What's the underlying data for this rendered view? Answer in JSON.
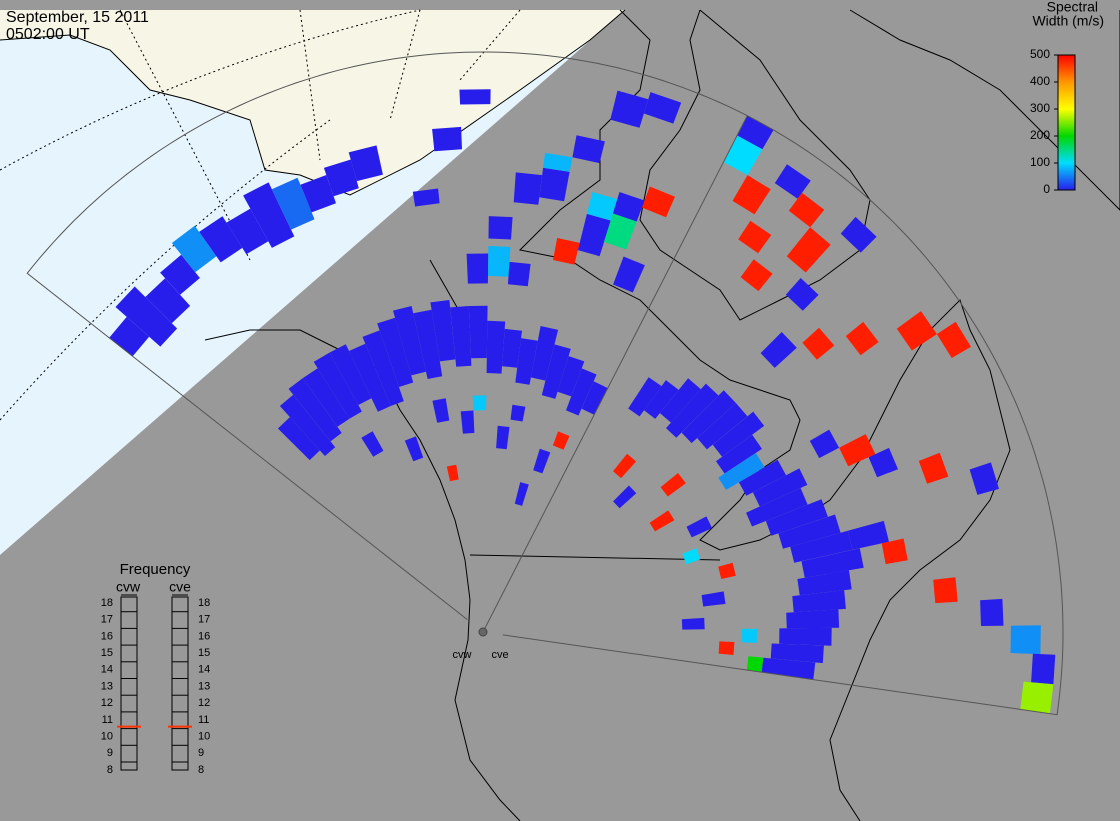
{
  "header": {
    "date": "September, 15 2011",
    "time": "0502:00 UT"
  },
  "colorbar": {
    "title": [
      "Spectral",
      "Width (m/s)"
    ],
    "lim": [
      0,
      500
    ],
    "ticks": [
      0,
      100,
      200,
      300,
      400,
      500
    ]
  },
  "frequency": {
    "title": "Frequency",
    "lim": [
      8,
      18
    ],
    "ticks": [
      8,
      9,
      10,
      11,
      12,
      13,
      14,
      15,
      16,
      17,
      18
    ]
  },
  "radars": [
    {
      "name": "cvw",
      "frequency": 10.6,
      "echoes": [
        [
          0,
          57,
          60,
          0
        ],
        [
          1,
          55,
          62,
          0
        ],
        [
          2,
          56,
          60,
          0
        ],
        [
          3,
          58,
          61,
          0
        ],
        [
          4,
          59,
          63,
          60
        ],
        [
          5,
          58,
          62,
          0
        ],
        [
          6,
          57,
          61,
          0
        ],
        [
          7,
          56,
          63,
          0
        ],
        [
          8,
          57,
          62,
          40
        ],
        [
          9,
          58,
          61,
          0
        ],
        [
          10,
          59,
          62,
          0
        ],
        [
          11,
          60,
          63,
          0
        ],
        [
          2,
          30,
          35,
          0
        ],
        [
          3,
          29,
          37,
          0
        ],
        [
          4,
          30,
          38,
          0
        ],
        [
          5,
          31,
          38,
          0
        ],
        [
          6,
          31,
          39,
          0
        ],
        [
          7,
          32,
          39,
          0
        ],
        [
          8,
          30,
          38,
          0
        ],
        [
          9,
          30,
          39,
          0
        ],
        [
          10,
          32,
          40,
          0
        ],
        [
          11,
          33,
          41,
          0
        ],
        [
          12,
          32,
          40,
          0
        ],
        [
          13,
          34,
          41,
          0
        ],
        [
          14,
          33,
          40,
          0
        ],
        [
          15,
          34,
          40,
          0
        ],
        [
          16,
          32,
          38,
          0
        ],
        [
          17,
          33,
          37,
          0
        ],
        [
          18,
          31,
          36,
          0
        ],
        [
          19,
          32,
          38,
          0
        ],
        [
          20,
          30,
          36,
          0
        ],
        [
          21,
          31,
          35,
          0
        ],
        [
          22,
          29,
          34,
          0
        ],
        [
          23,
          30,
          33,
          0
        ],
        [
          6,
          25,
          27,
          0
        ],
        [
          9,
          22,
          24,
          0
        ],
        [
          12,
          26,
          28,
          0
        ],
        [
          14,
          24,
          26,
          0
        ],
        [
          15,
          27,
          28,
          90
        ],
        [
          17,
          22,
          24,
          0
        ],
        [
          18,
          26,
          27,
          0
        ],
        [
          20,
          15,
          17,
          0
        ],
        [
          21,
          20,
          22,
          0
        ],
        [
          12,
          18,
          19,
          480
        ],
        [
          22,
          24,
          25,
          480
        ],
        [
          15,
          44,
          47,
          0
        ],
        [
          16,
          45,
          48,
          80
        ],
        [
          17,
          44,
          46,
          0
        ],
        [
          16,
          50,
          52,
          0
        ],
        [
          17,
          55,
          58,
          0
        ],
        [
          18,
          56,
          59,
          0
        ],
        [
          18,
          60,
          61,
          80
        ],
        [
          19,
          48,
          50,
          480
        ],
        [
          20,
          50,
          54,
          0
        ],
        [
          20,
          55,
          57,
          90
        ],
        [
          21,
          52,
          55,
          150
        ],
        [
          21,
          56,
          58,
          0
        ],
        [
          22,
          58,
          60,
          480
        ],
        [
          22,
          47,
          50,
          0
        ],
        [
          19,
          62,
          64,
          0
        ],
        [
          20,
          68,
          71,
          0
        ],
        [
          21,
          70,
          72,
          0
        ],
        [
          14,
          62,
          64,
          0
        ],
        [
          13,
          55,
          56,
          0
        ],
        [
          15,
          68,
          69,
          0
        ]
      ]
    },
    {
      "name": "cve",
      "frequency": 10.6,
      "echoes": [
        [
          2,
          33,
          37,
          0
        ],
        [
          3,
          34,
          38,
          0
        ],
        [
          4,
          35,
          40,
          0
        ],
        [
          5,
          34,
          41,
          0
        ],
        [
          6,
          35,
          42,
          0
        ],
        [
          7,
          36,
          42,
          0
        ],
        [
          8,
          37,
          43,
          0
        ],
        [
          9,
          36,
          41,
          0
        ],
        [
          10,
          35,
          40,
          60
        ],
        [
          11,
          37,
          42,
          0
        ],
        [
          12,
          38,
          44,
          0
        ],
        [
          13,
          36,
          43,
          0
        ],
        [
          14,
          38,
          45,
          0
        ],
        [
          15,
          39,
          46,
          0
        ],
        [
          16,
          40,
          47,
          0
        ],
        [
          17,
          41,
          48,
          0
        ],
        [
          18,
          40,
          46,
          0
        ],
        [
          19,
          39,
          45,
          0
        ],
        [
          20,
          38,
          44,
          0
        ],
        [
          21,
          37,
          43,
          0
        ],
        [
          22,
          36,
          42,
          0
        ],
        [
          23,
          35,
          41,
          0
        ],
        [
          4,
          25,
          27,
          480
        ],
        [
          6,
          22,
          24,
          0
        ],
        [
          8,
          28,
          30,
          480
        ],
        [
          10,
          24,
          26,
          480
        ],
        [
          12,
          28,
          30,
          0
        ],
        [
          14,
          26,
          27,
          100
        ],
        [
          16,
          30,
          31,
          480
        ],
        [
          18,
          27,
          29,
          0
        ],
        [
          20,
          24,
          26,
          0
        ],
        [
          22,
          29,
          30,
          480
        ],
        [
          23,
          33,
          34,
          200
        ],
        [
          21,
          32,
          33,
          90
        ],
        [
          0,
          68,
          71,
          100
        ],
        [
          1,
          64,
          67,
          480
        ],
        [
          2,
          60,
          62,
          480
        ],
        [
          3,
          56,
          58,
          480
        ],
        [
          4,
          62,
          66,
          480
        ],
        [
          5,
          58,
          60,
          0
        ],
        [
          6,
          50,
          53,
          0
        ],
        [
          7,
          55,
          57,
          480
        ],
        [
          8,
          60,
          62,
          480
        ],
        [
          9,
          66,
          69,
          480
        ],
        [
          10,
          70,
          72,
          480
        ],
        [
          11,
          48,
          50,
          0
        ],
        [
          12,
          51,
          54,
          480
        ],
        [
          13,
          54,
          56,
          0
        ],
        [
          14,
          60,
          62,
          480
        ],
        [
          15,
          66,
          68,
          0
        ],
        [
          16,
          48,
          52,
          0
        ],
        [
          17,
          52,
          54,
          480
        ],
        [
          18,
          44,
          46,
          0
        ],
        [
          19,
          58,
          60,
          480
        ],
        [
          20,
          64,
          66,
          0
        ],
        [
          21,
          68,
          71,
          60
        ],
        [
          22,
          71,
          73,
          0
        ],
        [
          23,
          70,
          73,
          260
        ],
        [
          0,
          72,
          74,
          0
        ],
        [
          2,
          69,
          71,
          0
        ],
        [
          3,
          67,
          69,
          480
        ],
        [
          5,
          69,
          71,
          0
        ]
      ]
    }
  ]
}
